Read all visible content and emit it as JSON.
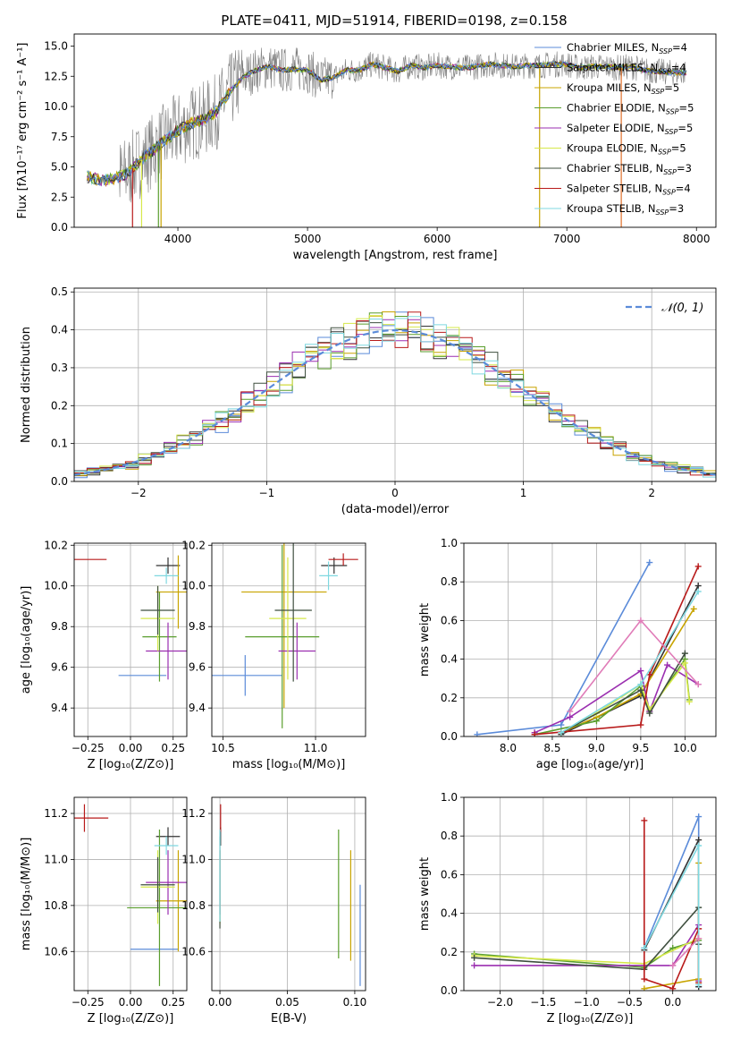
{
  "title": "PLATE=0411, MJD=51914, FIBERID=0198, z=0.158",
  "models": [
    {
      "name": "Chabrier MILES, N$_{SSP}$=4",
      "label": "Chabrier MILES, N",
      "nssp": "=4",
      "color": "#5b8bd9"
    },
    {
      "name": "Salpeter MILES, N$_{SSP}$=4",
      "label": "Salpeter MILES, N",
      "nssp": "=4",
      "color": "#333333"
    },
    {
      "name": "Kroupa MILES, N$_{SSP}$=5",
      "label": "Kroupa MILES, N",
      "nssp": "=5",
      "color": "#c8a400"
    },
    {
      "name": "Chabrier ELODIE, N$_{SSP}$=5",
      "label": "Chabrier ELODIE, N",
      "nssp": "=5",
      "color": "#5a9e2e"
    },
    {
      "name": "Salpeter ELODIE, N$_{SSP}$=5",
      "label": "Salpeter ELODIE, N",
      "nssp": "=5",
      "color": "#9b2fb0"
    },
    {
      "name": "Kroupa ELODIE, N$_{SSP}$=5",
      "label": "Kroupa ELODIE, N",
      "nssp": "=5",
      "color": "#d6e84a"
    },
    {
      "name": "Chabrier STELIB, N$_{SSP}$=3",
      "label": "Chabrier STELIB, N",
      "nssp": "=3",
      "color": "#3f4f3f"
    },
    {
      "name": "Salpeter STELIB, N$_{SSP}$=4",
      "label": "Salpeter STELIB, N",
      "nssp": "=4",
      "color": "#b81a1a"
    },
    {
      "name": "Kroupa STELIB, N$_{SSP}$=3",
      "label": "Kroupa STELIB, N",
      "nssp": "=3",
      "color": "#7fd8e0"
    }
  ],
  "chart_data": [
    {
      "type": "line",
      "panel": "spectrum",
      "title": "PLATE=0411, MJD=51914, FIBERID=0198, z=0.158",
      "xlabel": "wavelength [Angstrom, rest frame]",
      "ylabel": "Flux [fλ10⁻¹⁷ erg cm⁻² s⁻¹ A⁻¹]",
      "xlim": [
        3200,
        8150
      ],
      "ylim": [
        0,
        16
      ],
      "xticks": [
        4000,
        5000,
        6000,
        7000,
        8000
      ],
      "yticks": [
        0.0,
        2.5,
        5.0,
        7.5,
        10.0,
        12.5,
        15.0
      ],
      "xtick_labels": [
        "4000",
        "5000",
        "6000",
        "7000",
        "8000"
      ],
      "ytick_labels": [
        "0.0",
        "2.5",
        "5.0",
        "7.5",
        "10.0",
        "12.5",
        "15.0"
      ],
      "legend": "upper right",
      "series": [
        {
          "name": "data",
          "color": "#808080",
          "x": [
            3300,
            3400,
            3500,
            3600,
            3700,
            3800,
            3900,
            4000,
            4100,
            4200,
            4300,
            4400,
            4500,
            4600,
            4700,
            4800,
            4900,
            5000,
            5100,
            5200,
            5300,
            5400,
            5500,
            5600,
            5700,
            5800,
            5900,
            6000,
            6100,
            6200,
            6300,
            6400,
            6500,
            6600,
            6700,
            6800,
            6900,
            7000,
            7100,
            7200,
            7300,
            7400,
            7500,
            7600,
            7700,
            7800,
            7900
          ],
          "y": [
            4.2,
            3.9,
            4.0,
            4.4,
            5.4,
            6.3,
            7.2,
            8.0,
            8.6,
            8.9,
            9.6,
            11.2,
            12.4,
            13.0,
            13.3,
            13.0,
            13.1,
            13.0,
            12.2,
            12.4,
            13.0,
            13.0,
            13.5,
            13.2,
            12.9,
            13.4,
            13.2,
            13.4,
            13.3,
            13.2,
            13.3,
            13.5,
            13.4,
            13.3,
            13.4,
            13.4,
            13.5,
            13.5,
            13.2,
            13.3,
            13.3,
            13.2,
            13.3,
            13.0,
            12.9,
            12.8,
            12.8
          ]
        },
        {
          "name": "model",
          "color": "#b81a1a",
          "x": [
            3300,
            3400,
            3500,
            3600,
            3700,
            3800,
            3900,
            4000,
            4100,
            4200,
            4300,
            4400,
            4500,
            4600,
            4700,
            4800,
            4900,
            5000,
            5100,
            5200,
            5300,
            5400,
            5500,
            5600,
            5700,
            5800,
            5900,
            6000,
            6100,
            6200,
            6300,
            6400,
            6500,
            6600,
            6700,
            6800,
            6900,
            7000,
            7100,
            7200,
            7300,
            7400,
            7500,
            7600,
            7700,
            7800,
            7900
          ],
          "y": [
            4.3,
            3.9,
            4.0,
            4.4,
            5.4,
            6.3,
            7.1,
            7.9,
            8.5,
            8.9,
            9.5,
            11.0,
            12.3,
            12.9,
            13.2,
            13.0,
            13.0,
            12.9,
            12.1,
            12.4,
            12.9,
            13.0,
            13.4,
            13.2,
            12.9,
            13.3,
            13.2,
            13.3,
            13.3,
            13.2,
            13.3,
            13.4,
            13.4,
            13.3,
            13.4,
            13.4,
            13.4,
            13.4,
            13.2,
            13.3,
            13.3,
            13.2,
            13.2,
            13.0,
            12.9,
            12.8,
            12.8
          ]
        }
      ]
    },
    {
      "type": "line",
      "panel": "residuals",
      "xlabel": "(data-model)/error",
      "ylabel": "Normed distribution",
      "xlim": [
        -2.5,
        2.5
      ],
      "ylim": [
        0,
        0.51
      ],
      "xticks": [
        -2,
        -1,
        0,
        1,
        2
      ],
      "yticks": [
        0.0,
        0.1,
        0.2,
        0.3,
        0.4,
        0.5
      ],
      "xtick_labels": [
        "−2",
        "−1",
        "0",
        "1",
        "2"
      ],
      "ytick_labels": [
        "0.0",
        "0.1",
        "0.2",
        "0.3",
        "0.4",
        "0.5"
      ],
      "legend": "upper right",
      "legend_label": "𝒩(0, 1)",
      "reference": {
        "name": "𝒩(0, 1)",
        "mu": 0,
        "sigma": 1,
        "color": "#5b8bd9"
      },
      "bin_width": 0.1
    },
    {
      "type": "scatter",
      "panel": "age-vs-Z",
      "xlabel": "Z [log₁₀(Z/Z⊙)]",
      "ylabel": "age  [log₁₀(age/yr)]",
      "xlim": [
        -0.33,
        0.33
      ],
      "ylim": [
        9.26,
        10.21
      ],
      "xticks": [
        -0.25,
        0.0,
        0.25
      ],
      "yticks": [
        9.4,
        9.6,
        9.8,
        10.0,
        10.2
      ],
      "xtick_labels": [
        "−0.25",
        "0.00",
        "0.25"
      ],
      "ytick_labels": [
        "9.4",
        "9.6",
        "9.8",
        "10.0",
        "10.2"
      ],
      "points": [
        {
          "x": 0.07,
          "y": 9.56,
          "xerr": 0.14,
          "yerr": 0.0
        },
        {
          "x": 0.22,
          "y": 10.1,
          "xerr": 0.07,
          "yerr": 0.04
        },
        {
          "x": 0.28,
          "y": 9.97,
          "xerr": 0.13,
          "yerr": 0.18
        },
        {
          "x": 0.17,
          "y": 9.75,
          "xerr": 0.1,
          "yerr": 0.22
        },
        {
          "x": 0.22,
          "y": 9.68,
          "xerr": 0.13,
          "yerr": 0.14
        },
        {
          "x": 0.16,
          "y": 9.84,
          "xerr": 0.1,
          "yerr": 0.16
        },
        {
          "x": 0.16,
          "y": 9.88,
          "xerr": 0.1,
          "yerr": 0.12
        },
        {
          "x": -0.27,
          "y": 10.13,
          "xerr": 0.13,
          "yerr": 0.0
        },
        {
          "x": 0.21,
          "y": 10.05,
          "xerr": 0.07,
          "yerr": 0.04
        }
      ]
    },
    {
      "type": "scatter",
      "panel": "age-vs-mass",
      "xlabel": "mass [log₁₀(M/M⊙)]",
      "xlim": [
        10.44,
        11.27
      ],
      "ylim": [
        9.26,
        10.21
      ],
      "xticks": [
        10.5,
        11.0
      ],
      "yticks": [
        9.4,
        9.6,
        9.8,
        10.0,
        10.2
      ],
      "xtick_labels": [
        "10.5",
        "11.0"
      ],
      "ytick_labels": [
        "9.4",
        "9.6",
        "9.8",
        "10.0",
        "10.2"
      ],
      "points": [
        {
          "x": 10.62,
          "y": 9.56,
          "xerr": 0.2,
          "yerr": 0.1
        },
        {
          "x": 11.1,
          "y": 10.1,
          "xerr": 0.07,
          "yerr": 0.04
        },
        {
          "x": 10.83,
          "y": 9.97,
          "xerr": 0.23,
          "yerr": 0.57
        },
        {
          "x": 10.82,
          "y": 9.75,
          "xerr": 0.2,
          "yerr": 0.45
        },
        {
          "x": 10.9,
          "y": 9.68,
          "xerr": 0.1,
          "yerr": 0.14
        },
        {
          "x": 10.85,
          "y": 9.84,
          "xerr": 0.1,
          "yerr": 0.3
        },
        {
          "x": 10.88,
          "y": 9.88,
          "xerr": 0.1,
          "yerr": 0.35
        },
        {
          "x": 11.15,
          "y": 10.13,
          "xerr": 0.08,
          "yerr": 0.03
        },
        {
          "x": 11.07,
          "y": 10.05,
          "xerr": 0.05,
          "yerr": 0.07
        }
      ]
    },
    {
      "type": "line",
      "panel": "mass-weight-vs-age",
      "xlabel": "age  [log₁₀(age/yr)]",
      "ylabel": "mass weight",
      "xlim": [
        7.5,
        10.35
      ],
      "ylim": [
        0,
        1
      ],
      "xticks": [
        8.0,
        8.5,
        9.0,
        9.5,
        10.0
      ],
      "yticks": [
        0.0,
        0.2,
        0.4,
        0.6,
        0.8,
        1.0
      ],
      "xtick_labels": [
        "8.0",
        "8.5",
        "9.0",
        "9.5",
        "10.0"
      ],
      "ytick_labels": [
        "0.0",
        "0.2",
        "0.4",
        "0.6",
        "0.8",
        "1.0"
      ],
      "series": [
        {
          "x": [
            7.65,
            8.6,
            9.6
          ],
          "y": [
            0.01,
            0.06,
            0.9
          ]
        },
        {
          "x": [
            8.6,
            9.5,
            10.15
          ],
          "y": [
            0.01,
            0.21,
            0.78
          ]
        },
        {
          "x": [
            8.6,
            9.0,
            9.5,
            10.1
          ],
          "y": [
            0.02,
            0.1,
            0.22,
            0.66
          ]
        },
        {
          "x": [
            8.3,
            9.0,
            9.5,
            9.6,
            10.0,
            10.05
          ],
          "y": [
            0.01,
            0.08,
            0.26,
            0.13,
            0.4,
            0.19
          ]
        },
        {
          "x": [
            8.3,
            8.7,
            9.5,
            9.6,
            9.8,
            10.15
          ],
          "y": [
            0.02,
            0.1,
            0.34,
            0.13,
            0.37,
            0.27
          ]
        },
        {
          "x": [
            8.6,
            9.0,
            9.5,
            9.6,
            10.0,
            10.05
          ],
          "y": [
            0.02,
            0.12,
            0.27,
            0.14,
            0.38,
            0.18
          ]
        },
        {
          "x": [
            8.6,
            9.5,
            9.6,
            10.0
          ],
          "y": [
            0.02,
            0.24,
            0.12,
            0.43
          ]
        },
        {
          "x": [
            8.3,
            9.5,
            9.6,
            10.15
          ],
          "y": [
            0.01,
            0.06,
            0.32,
            0.88
          ]
        },
        {
          "x": [
            8.6,
            9.5,
            10.15
          ],
          "y": [
            0.02,
            0.27,
            0.75
          ]
        },
        {
          "x": [
            8.7,
            9.5,
            10.15
          ],
          "y": [
            0.13,
            0.6,
            0.27
          ]
        }
      ]
    },
    {
      "type": "scatter",
      "panel": "mass-vs-Z",
      "xlabel": "Z [log₁₀(Z/Z⊙)]",
      "ylabel": "mass [log₁₀(M/M⊙)]",
      "xlim": [
        -0.33,
        0.33
      ],
      "ylim": [
        10.43,
        11.27
      ],
      "xticks": [
        -0.25,
        0.0,
        0.25
      ],
      "yticks": [
        10.6,
        10.8,
        11.0,
        11.2
      ],
      "xtick_labels": [
        "−0.25",
        "0.00",
        "0.25"
      ],
      "ytick_labels": [
        "10.6",
        "10.8",
        "11.0",
        "11.2"
      ],
      "points": [
        {
          "x": 0.14,
          "y": 10.61,
          "xerr": 0.14,
          "yerr": 0.0
        },
        {
          "x": 0.22,
          "y": 11.1,
          "xerr": 0.07,
          "yerr": 0.04
        },
        {
          "x": 0.28,
          "y": 10.82,
          "xerr": 0.13,
          "yerr": 0.22
        },
        {
          "x": 0.17,
          "y": 10.79,
          "xerr": 0.19,
          "yerr": 0.34
        },
        {
          "x": 0.22,
          "y": 10.9,
          "xerr": 0.13,
          "yerr": 0.14
        },
        {
          "x": 0.16,
          "y": 10.88,
          "xerr": 0.1,
          "yerr": 0.16
        },
        {
          "x": 0.16,
          "y": 10.89,
          "xerr": 0.1,
          "yerr": 0.12
        },
        {
          "x": -0.27,
          "y": 11.18,
          "xerr": 0.14,
          "yerr": 0.06
        },
        {
          "x": 0.21,
          "y": 11.06,
          "xerr": 0.07,
          "yerr": 0.04
        }
      ]
    },
    {
      "type": "scatter",
      "panel": "mass-vs-EBV",
      "xlabel": "E(B-V)",
      "xlim": [
        -0.006,
        0.108
      ],
      "ylim": [
        10.43,
        11.27
      ],
      "xticks": [
        0.0,
        0.05,
        0.1
      ],
      "yticks": [
        10.6,
        10.8,
        11.0,
        11.2
      ],
      "xtick_labels": [
        "0.00",
        "0.05",
        "0.10"
      ],
      "ytick_labels": [
        "10.6",
        "10.8",
        "11.0",
        "11.2"
      ],
      "points": [
        {
          "x": 0.104,
          "y": 10.67,
          "yerr": 0.22
        },
        {
          "x": 0.0005,
          "y": 11.1,
          "yerr": 0.04
        },
        {
          "x": 0.097,
          "y": 10.8,
          "yerr": 0.24
        },
        {
          "x": 0.088,
          "y": 10.85,
          "yerr": 0.28
        },
        {
          "x": 0.0,
          "y": 10.9,
          "yerr": 0.14
        },
        {
          "x": 0.0,
          "y": 10.88,
          "yerr": 0.16
        },
        {
          "x": 0.0,
          "y": 10.9,
          "yerr": 0.2
        },
        {
          "x": 0.0005,
          "y": 11.18,
          "yerr": 0.06
        },
        {
          "x": 0.0,
          "y": 10.93,
          "yerr": 0.2
        }
      ]
    },
    {
      "type": "line",
      "panel": "mass-weight-vs-Z",
      "xlabel": "Z [log₁₀(Z/Z⊙)]",
      "ylabel": "mass weight",
      "xlim": [
        -2.42,
        0.5
      ],
      "ylim": [
        0,
        1
      ],
      "xticks": [
        -2.0,
        -1.5,
        -1.0,
        -0.5,
        0.0
      ],
      "yticks": [
        0.0,
        0.2,
        0.4,
        0.6,
        0.8,
        1.0
      ],
      "xtick_labels": [
        "−2.0",
        "−1.5",
        "−1.0",
        "−0.5",
        "0.0"
      ],
      "ytick_labels": [
        "0.0",
        "0.2",
        "0.4",
        "0.6",
        "0.8",
        "1.0"
      ],
      "series": [
        {
          "x": [
            -0.33,
            0.3,
            0.3
          ],
          "y": [
            0.22,
            0.9,
            0.02
          ]
        },
        {
          "x": [
            -0.33,
            0.3,
            0.3
          ],
          "y": [
            0.21,
            0.78,
            0.02
          ]
        },
        {
          "x": [
            -0.33,
            0.3,
            0.3
          ],
          "y": [
            0.01,
            0.06,
            0.66
          ]
        },
        {
          "x": [
            -2.3,
            -0.33,
            0.0,
            0.3
          ],
          "y": [
            0.19,
            0.12,
            0.22,
            0.26
          ]
        },
        {
          "x": [
            -2.3,
            -0.33,
            0.0,
            0.3,
            0.3
          ],
          "y": [
            0.13,
            0.13,
            0.13,
            0.34,
            0.05
          ]
        },
        {
          "x": [
            -2.3,
            -0.33,
            0.3,
            0.3
          ],
          "y": [
            0.18,
            0.14,
            0.27,
            0.04
          ]
        },
        {
          "x": [
            -2.3,
            -0.33,
            0.3,
            0.3
          ],
          "y": [
            0.17,
            0.11,
            0.43,
            0.24
          ]
        },
        {
          "x": [
            -0.33,
            -0.33,
            0.0,
            0.3,
            0.3
          ],
          "y": [
            0.88,
            0.06,
            0.01,
            0.32,
            0.04
          ]
        },
        {
          "x": [
            -0.33,
            0.3,
            0.3
          ],
          "y": [
            0.22,
            0.75,
            0.03
          ]
        },
        {
          "x": [
            0.0,
            0.3
          ],
          "y": [
            0.13,
            0.27
          ]
        }
      ]
    }
  ]
}
